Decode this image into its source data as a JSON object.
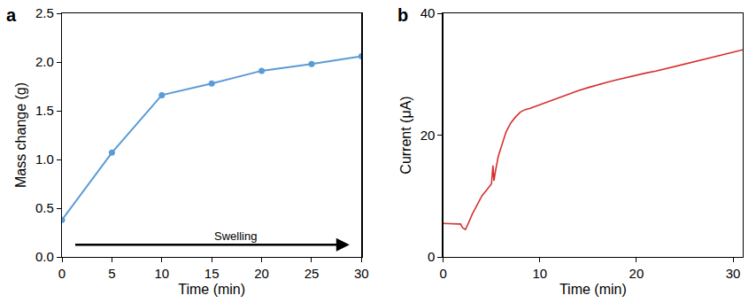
{
  "chart_data": [
    {
      "type": "line",
      "panel_label": "a",
      "x_label": "Time (min)",
      "y_label": "Mass change (g)",
      "x": [
        0,
        5,
        10,
        15,
        20,
        25,
        30
      ],
      "values": [
        0.38,
        1.07,
        1.66,
        1.78,
        1.91,
        1.98,
        2.06
      ],
      "color": "#5b9bd5",
      "marker": "circle",
      "line_style": "solid",
      "xlim": [
        0,
        30
      ],
      "xticks": [
        0,
        5,
        10,
        15,
        20,
        25,
        30
      ],
      "ylim": [
        0,
        2.5
      ],
      "yticks": [
        {
          "value": 0,
          "label": "0.0"
        },
        0.5,
        {
          "value": 1,
          "label": "1.0"
        },
        1.5,
        {
          "value": 2,
          "label": "2.0"
        },
        2.5
      ],
      "grid": false,
      "annotations": [
        {
          "text": "Swelling"
        }
      ]
    },
    {
      "type": "line",
      "panel_label": "b",
      "x_label": "Time (min)",
      "y_label": "Current (μA)",
      "x": [
        0,
        0.5,
        1,
        1.5,
        1.8,
        2.0,
        2.3,
        2.6,
        3.0,
        3.5,
        4.0,
        4.5,
        5.0,
        5.15,
        5.25,
        5.4,
        5.7,
        6.0,
        6.5,
        7.0,
        7.5,
        8.0,
        8.5,
        9.0,
        10,
        11,
        12,
        13,
        14,
        15,
        16,
        17,
        18,
        19,
        20,
        21,
        22,
        23,
        24,
        25,
        26,
        27,
        28,
        29,
        30,
        31
      ],
      "values": [
        5.5,
        5.5,
        5.5,
        5.4,
        5.4,
        4.8,
        4.5,
        5.5,
        7.0,
        8.5,
        10.0,
        11.0,
        12.0,
        15.0,
        12.5,
        14.0,
        16.5,
        18.0,
        20.5,
        22.0,
        23.0,
        23.8,
        24.2,
        24.4,
        25.0,
        25.6,
        26.2,
        26.8,
        27.3,
        27.8,
        28.3,
        28.7,
        29.1,
        29.5,
        29.9,
        30.2,
        30.5,
        30.9,
        31.2,
        31.6,
        32.0,
        32.4,
        32.8,
        33.2,
        33.6,
        34.0
      ],
      "color": "#d62f2f",
      "line_style": "solid",
      "xlim": [
        0,
        31
      ],
      "xticks": [
        0,
        10,
        20,
        30
      ],
      "ylim": [
        0,
        40
      ],
      "yticks": [
        0,
        20,
        40
      ],
      "grid": false
    }
  ]
}
